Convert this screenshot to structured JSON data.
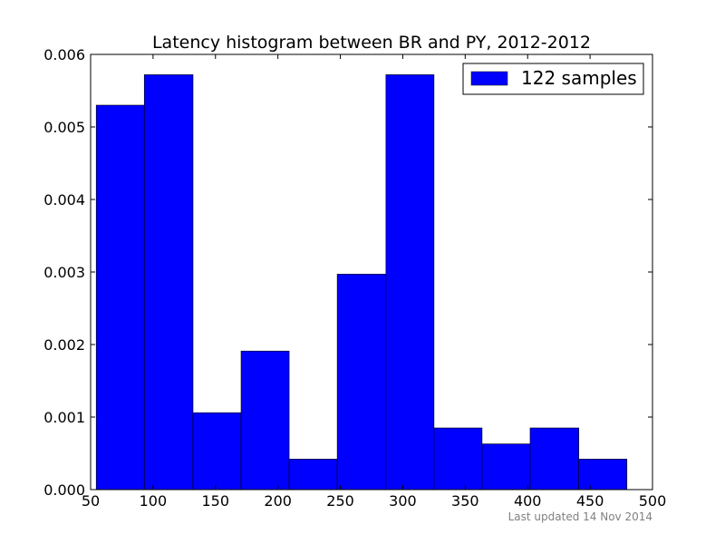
{
  "chart_data": {
    "type": "bar",
    "title": "Latency histogram between BR and PY, 2012-2012",
    "xlabel": "",
    "ylabel": "",
    "xlim": [
      50,
      500
    ],
    "ylim": [
      0,
      0.006
    ],
    "x_ticks": [
      "50",
      "100",
      "150",
      "200",
      "250",
      "300",
      "350",
      "400",
      "450",
      "500"
    ],
    "y_ticks": [
      "0.000",
      "0.001",
      "0.002",
      "0.003",
      "0.004",
      "0.005",
      "0.006"
    ],
    "bins": [
      {
        "start": 54.5,
        "end": 93.0,
        "value": 0.0053
      },
      {
        "start": 93.0,
        "end": 132.0,
        "value": 0.00572
      },
      {
        "start": 132.0,
        "end": 170.5,
        "value": 0.00106
      },
      {
        "start": 170.5,
        "end": 209.0,
        "value": 0.00191
      },
      {
        "start": 209.0,
        "end": 247.5,
        "value": 0.00042
      },
      {
        "start": 247.5,
        "end": 286.5,
        "value": 0.00297
      },
      {
        "start": 286.5,
        "end": 325.0,
        "value": 0.00572
      },
      {
        "start": 325.0,
        "end": 363.5,
        "value": 0.00085
      },
      {
        "start": 363.5,
        "end": 402.0,
        "value": 0.00063
      },
      {
        "start": 402.0,
        "end": 441.0,
        "value": 0.00085
      },
      {
        "start": 441.0,
        "end": 479.5,
        "value": 0.00042
      }
    ],
    "series": [
      {
        "name": "122 samples",
        "color": "#0000ff"
      }
    ],
    "legend_position": "top-right",
    "grid": false
  },
  "footer": {
    "text": "Last updated 14 Nov 2014"
  }
}
